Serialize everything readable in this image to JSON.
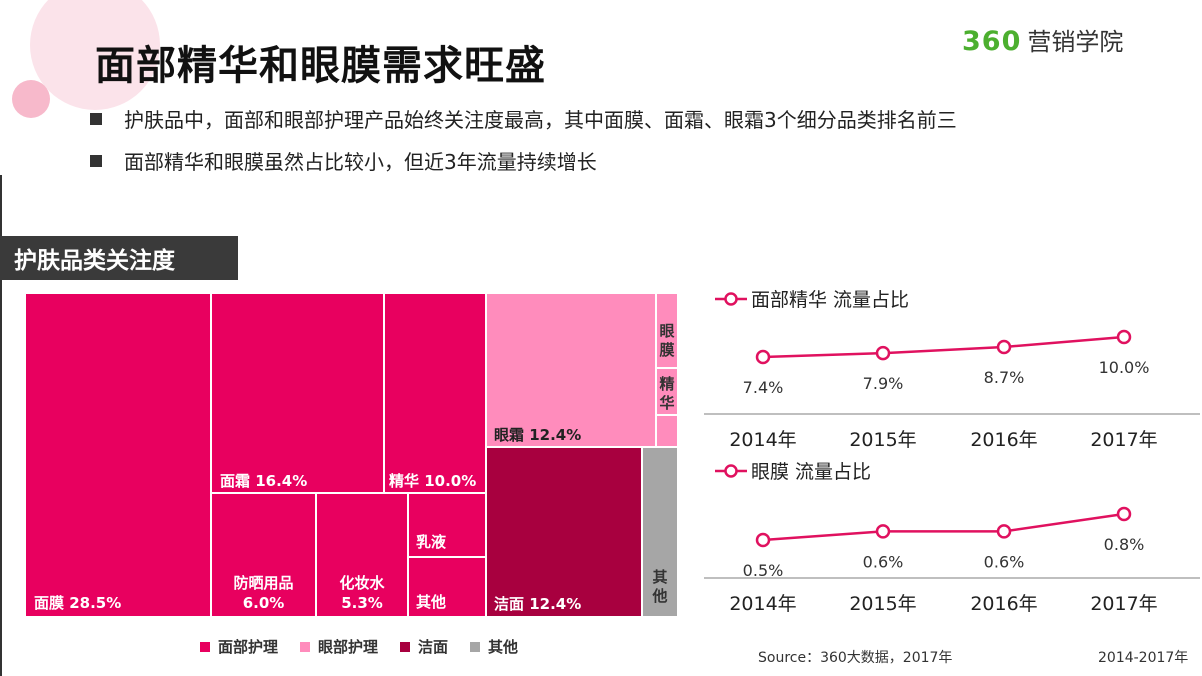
{
  "header": {
    "title": "面部精华和眼膜需求旺盛",
    "logo_num": "360",
    "logo_text": "营销学院",
    "bullets": [
      "护肤品中，面部和眼部护理产品始终关注度最高，其中面膜、面霜、眼霜3个细分品类排名前三",
      "面部精华和眼膜虽然占比较小，但近3年流量持续增长"
    ]
  },
  "section_title": "护肤品类关注度",
  "colors": {
    "face": "#e8005f",
    "eye": "#ff8cbc",
    "clean": "#a8003f",
    "other": "#a6a6a6",
    "line": "#e0115f"
  },
  "treemap": {
    "cells": [
      {
        "label": "面膜 28.5%",
        "group": "face"
      },
      {
        "label": "面霜 16.4%",
        "group": "face"
      },
      {
        "label": "精华 10.0%",
        "group": "face"
      },
      {
        "label": "防晒用品",
        "label2": "6.0%",
        "group": "face"
      },
      {
        "label": "化妆水",
        "label2": "5.3%",
        "group": "face"
      },
      {
        "label": "乳液",
        "group": "face"
      },
      {
        "label": "其他",
        "group": "face"
      },
      {
        "label": "眼霜 12.4%",
        "group": "eye"
      },
      {
        "label": "眼膜",
        "group": "eye"
      },
      {
        "label": "精华",
        "group": "eye"
      },
      {
        "label": "",
        "group": "eye"
      },
      {
        "label": "洁面 12.4%",
        "group": "clean"
      },
      {
        "label": "其他",
        "group": "other"
      }
    ],
    "legend": [
      {
        "label": "面部护理",
        "group": "face"
      },
      {
        "label": "眼部护理",
        "group": "eye"
      },
      {
        "label": "洁面",
        "group": "clean"
      },
      {
        "label": "其他",
        "group": "other"
      }
    ]
  },
  "chart_data": [
    {
      "type": "line",
      "x": [
        "2014年",
        "2015年",
        "2016年",
        "2017年"
      ],
      "series": [
        {
          "name": "面部精华 流量占比",
          "values": [
            7.4,
            7.9,
            8.7,
            10.0
          ],
          "labels": [
            "7.4%",
            "7.9%",
            "8.7%",
            "10.0%"
          ]
        }
      ]
    },
    {
      "type": "line",
      "x": [
        "2014年",
        "2015年",
        "2016年",
        "2017年"
      ],
      "series": [
        {
          "name": "眼膜 流量占比",
          "values": [
            0.5,
            0.6,
            0.6,
            0.8
          ],
          "labels": [
            "0.5%",
            "0.6%",
            "0.6%",
            "0.8%"
          ]
        }
      ]
    }
  ],
  "footer": {
    "source": "Source：360大数据，2017年",
    "range": "2014-2017年"
  }
}
